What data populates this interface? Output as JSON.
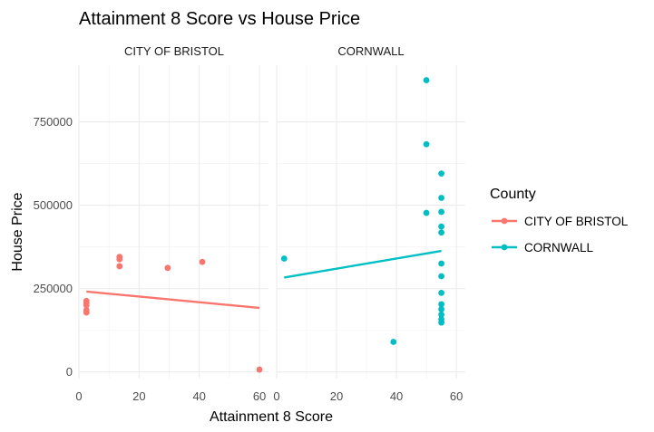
{
  "chart_data": {
    "type": "scatter",
    "title": "Attainment 8 Score vs House Price",
    "xlabel": "Attainment 8 Score",
    "ylabel": "House Price",
    "xlim": [
      0,
      63
    ],
    "ylim": [
      -20000,
      920000
    ],
    "x_ticks": [
      0,
      20,
      40,
      60
    ],
    "y_ticks": [
      0,
      250000,
      500000,
      750000
    ],
    "grid": true,
    "legend": {
      "title": "County",
      "position": "right"
    },
    "facets": [
      {
        "name": "CITY OF BRISTOL",
        "color": "#F8766D",
        "points": [
          {
            "x": 2.5,
            "y": 213000
          },
          {
            "x": 2.5,
            "y": 207000
          },
          {
            "x": 2.5,
            "y": 200000
          },
          {
            "x": 2.5,
            "y": 185000
          },
          {
            "x": 2.5,
            "y": 178000
          },
          {
            "x": 13.5,
            "y": 345000
          },
          {
            "x": 13.5,
            "y": 338000
          },
          {
            "x": 13.5,
            "y": 317000
          },
          {
            "x": 29.5,
            "y": 312000
          },
          {
            "x": 41,
            "y": 330000
          },
          {
            "x": 60,
            "y": 7000
          }
        ],
        "trend": {
          "x": [
            2.5,
            60
          ],
          "y": [
            241000,
            192000
          ]
        }
      },
      {
        "name": "CORNWALL",
        "color": "#00BFC4",
        "points": [
          {
            "x": 2.5,
            "y": 340000
          },
          {
            "x": 39,
            "y": 90000
          },
          {
            "x": 50,
            "y": 875000
          },
          {
            "x": 50,
            "y": 683000
          },
          {
            "x": 50,
            "y": 477000
          },
          {
            "x": 55,
            "y": 595000
          },
          {
            "x": 55,
            "y": 522000
          },
          {
            "x": 55,
            "y": 480000
          },
          {
            "x": 55,
            "y": 436000
          },
          {
            "x": 55,
            "y": 418000
          },
          {
            "x": 55,
            "y": 325000
          },
          {
            "x": 55,
            "y": 287000
          },
          {
            "x": 55,
            "y": 237000
          },
          {
            "x": 55,
            "y": 203000
          },
          {
            "x": 55,
            "y": 188000
          },
          {
            "x": 55,
            "y": 172000
          },
          {
            "x": 55,
            "y": 158000
          },
          {
            "x": 55,
            "y": 148000
          }
        ],
        "trend": {
          "x": [
            2.5,
            55
          ],
          "y": [
            283000,
            363000
          ]
        }
      }
    ]
  }
}
